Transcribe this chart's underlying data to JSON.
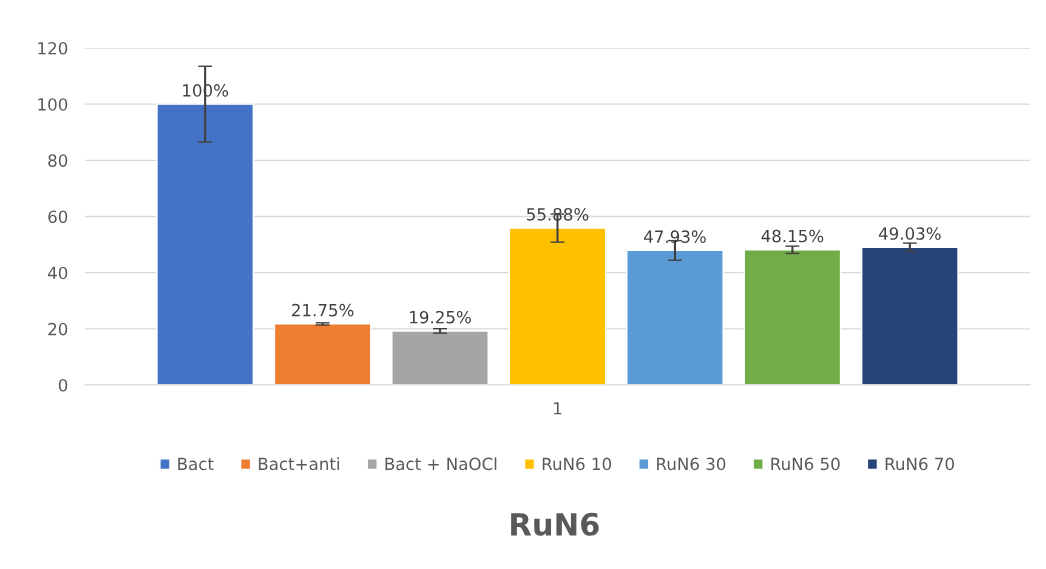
{
  "chart_data": {
    "type": "bar",
    "title": "RuN6",
    "categories": [
      "1"
    ],
    "series": [
      {
        "name": "Bact",
        "color": "#4472c4",
        "values": [
          100
        ],
        "errors": [
          13.5
        ],
        "value_labels": [
          "100%"
        ]
      },
      {
        "name": "Bact+anti",
        "color": "#ed7d31",
        "values": [
          21.75
        ],
        "errors": [
          0.4
        ],
        "value_labels": [
          "21.75%"
        ]
      },
      {
        "name": "Bact + NaOCl",
        "color": "#a5a5a5",
        "values": [
          19.25
        ],
        "errors": [
          0.8
        ],
        "value_labels": [
          "19.25%"
        ]
      },
      {
        "name": "RuN6 10",
        "color": "#ffc000",
        "values": [
          55.88
        ],
        "errors": [
          5
        ],
        "value_labels": [
          "55.88%"
        ]
      },
      {
        "name": "RuN6 30",
        "color": "#5b9bd5",
        "values": [
          47.93
        ],
        "errors": [
          3.5
        ],
        "value_labels": [
          "47.93%"
        ]
      },
      {
        "name": "RuN6 50",
        "color": "#70ad47",
        "values": [
          48.15
        ],
        "errors": [
          1.3
        ],
        "value_labels": [
          "48.15%"
        ]
      },
      {
        "name": "RuN6 70",
        "color": "#264478",
        "values": [
          49.03
        ],
        "errors": [
          1.5
        ],
        "value_labels": [
          "49.03%"
        ]
      }
    ],
    "ylim": [
      0,
      120
    ],
    "yticks": [
      0,
      20,
      40,
      60,
      80,
      100,
      120
    ],
    "grid": "y",
    "legend": "bottom"
  }
}
